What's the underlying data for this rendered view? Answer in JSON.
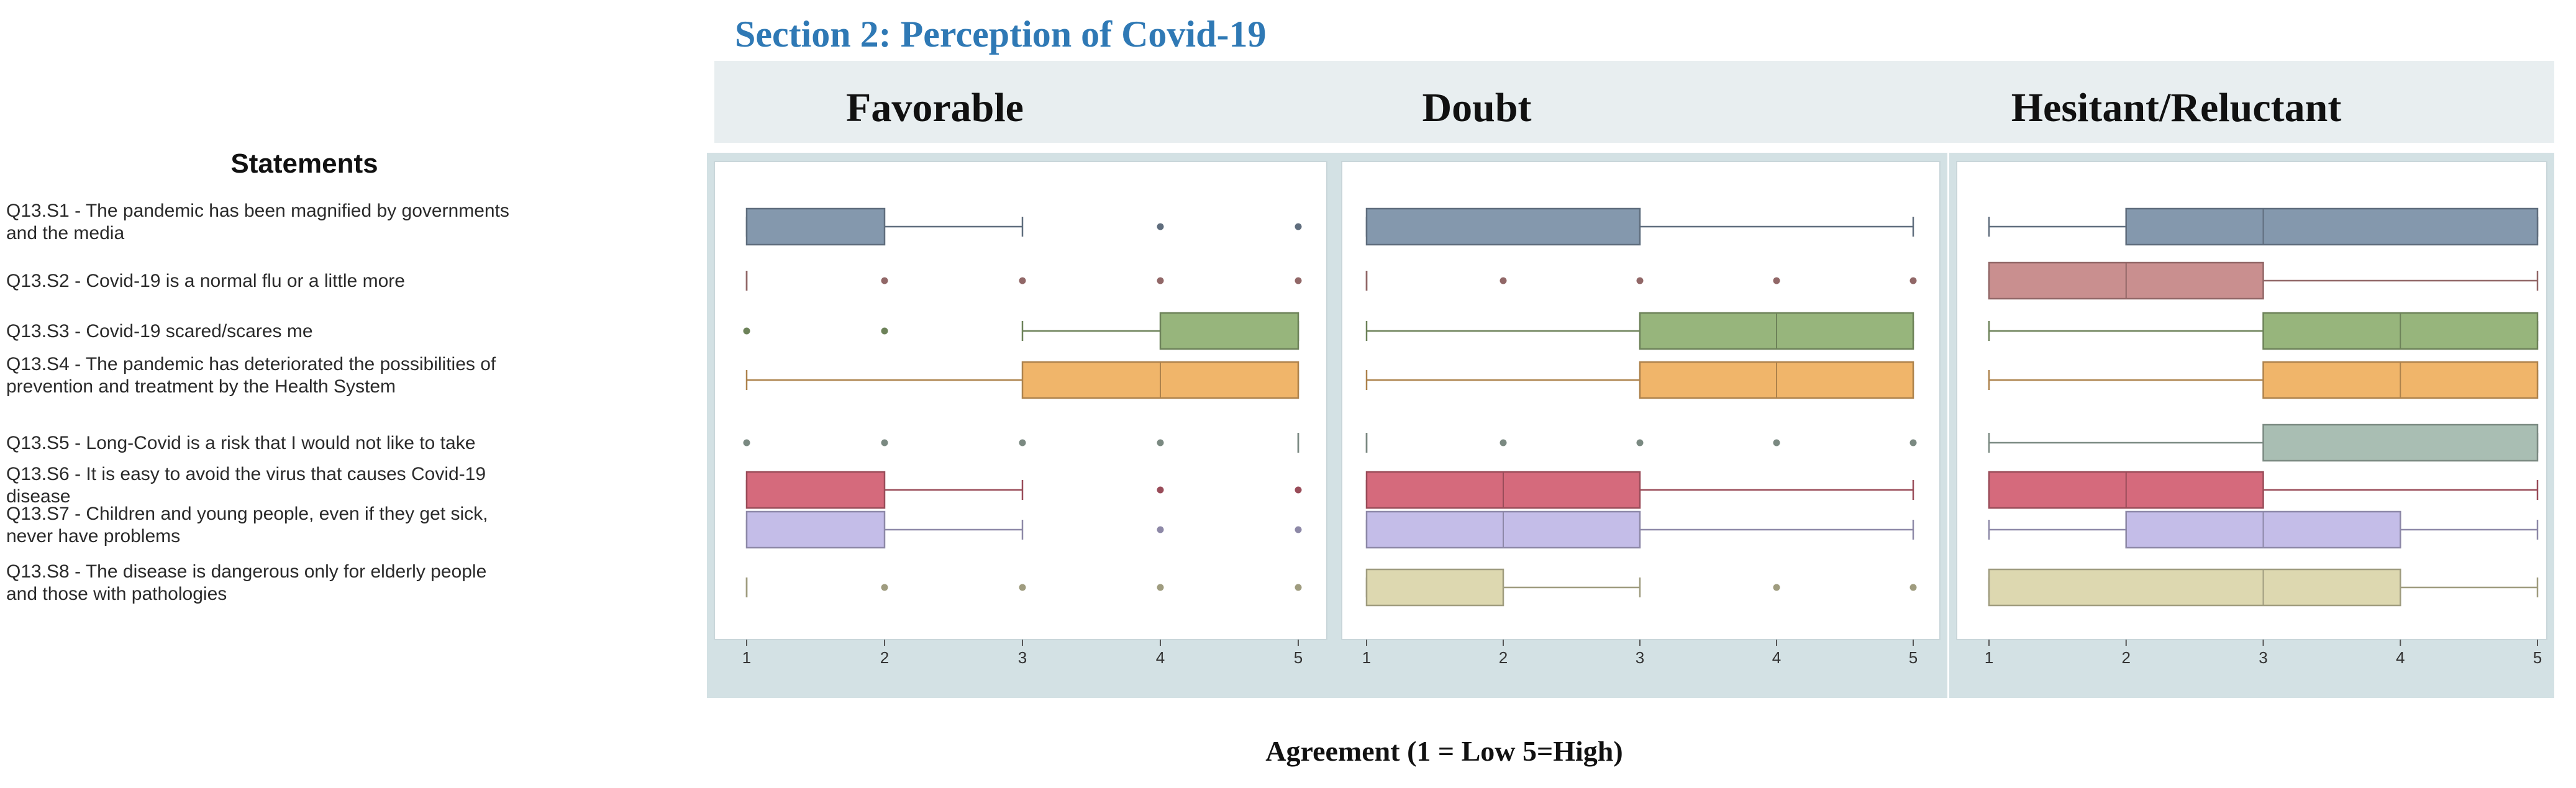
{
  "section_title": "Section 2: Perception of Covid-19",
  "statements_header": "Statements",
  "axis_caption": "Agreement  (1 = Low     5=High)",
  "colors": {
    "section_title": "#2f79b5",
    "panel_band": "#e8eef0",
    "frame": "#d3e1e4",
    "whisker": "#8da0ad"
  },
  "chart_data": {
    "type": "boxplot",
    "xlabel": "Agreement  (1 = Low     5=High)",
    "xlim": [
      1,
      5
    ],
    "ticks": [
      "1",
      "2",
      "3",
      "4",
      "5"
    ],
    "statements": [
      {
        "id": "Q13.S1",
        "lines": [
          "Q13.S1 - The pandemic has been magnified by governments",
          "and the media"
        ],
        "color": "#8498ad"
      },
      {
        "id": "Q13.S2",
        "lines": [
          "Q13.S2 - Covid-19 is a normal flu or a little more"
        ],
        "color": "#c98f8f"
      },
      {
        "id": "Q13.S3",
        "lines": [
          "Q13.S3 - Covid-19 scared/scares me"
        ],
        "color": "#97b57c"
      },
      {
        "id": "Q13.S4",
        "lines": [
          "Q13.S4 - The pandemic has deteriorated the possibilities of",
          "prevention and treatment by the Health System"
        ],
        "color": "#f0b56a"
      },
      {
        "id": "Q13.S5",
        "lines": [
          "Q13.S5 - Long-Covid is a risk that I would not like to take"
        ],
        "color": "#a9beb3"
      },
      {
        "id": "Q13.S6",
        "lines": [
          "Q13.S6 - It is easy to avoid the virus that causes Covid-19",
          "disease"
        ],
        "color": "#d56a7c"
      },
      {
        "id": "Q13.S7",
        "lines": [
          "Q13.S7 - Children and young people, even if they get sick,",
          "never have problems"
        ],
        "color": "#c4bde8"
      },
      {
        "id": "Q13.S8",
        "lines": [
          "Q13.S8 - The disease is dangerous only for elderly people",
          "and those with pathologies"
        ],
        "color": "#ddd8b0"
      }
    ],
    "panels": [
      {
        "name": "Favorable",
        "boxes": [
          {
            "min": 1,
            "q1": 1,
            "median": 2,
            "q3": 2,
            "max": 3,
            "outliers": [
              4,
              5
            ]
          },
          {
            "min": 1,
            "q1": 1,
            "median": 1,
            "q3": 1,
            "max": 1,
            "outliers": [
              2,
              3,
              4,
              5
            ]
          },
          {
            "min": 3,
            "q1": 4,
            "median": 5,
            "q3": 5,
            "max": 5,
            "outliers": [
              1,
              2
            ]
          },
          {
            "min": 1,
            "q1": 3,
            "median": 4,
            "q3": 5,
            "max": 5,
            "outliers": []
          },
          {
            "min": 5,
            "q1": 5,
            "median": 5,
            "q3": 5,
            "max": 5,
            "outliers": [
              1,
              2,
              3,
              4
            ]
          },
          {
            "min": 1,
            "q1": 1,
            "median": 2,
            "q3": 2,
            "max": 3,
            "outliers": [
              4,
              5
            ]
          },
          {
            "min": 1,
            "q1": 1,
            "median": 2,
            "q3": 2,
            "max": 3,
            "outliers": [
              4,
              5
            ]
          },
          {
            "min": 1,
            "q1": 1,
            "median": 1,
            "q3": 1,
            "max": 1,
            "outliers": [
              2,
              3,
              4,
              5
            ]
          }
        ]
      },
      {
        "name": "Doubt",
        "boxes": [
          {
            "min": 1,
            "q1": 1,
            "median": 3,
            "q3": 3,
            "max": 5,
            "outliers": []
          },
          {
            "min": 1,
            "q1": 1,
            "median": 1,
            "q3": 1,
            "max": 1,
            "outliers": [
              2,
              3,
              4,
              5
            ]
          },
          {
            "min": 1,
            "q1": 3,
            "median": 4,
            "q3": 5,
            "max": 5,
            "outliers": []
          },
          {
            "min": 1,
            "q1": 3,
            "median": 4,
            "q3": 5,
            "max": 5,
            "outliers": []
          },
          {
            "min": 1,
            "q1": 1,
            "median": 1,
            "q3": 1,
            "max": 1,
            "outliers": [
              2,
              3,
              4,
              5
            ]
          },
          {
            "min": 1,
            "q1": 1,
            "median": 2,
            "q3": 3,
            "max": 5,
            "outliers": []
          },
          {
            "min": 1,
            "q1": 1,
            "median": 2,
            "q3": 3,
            "max": 5,
            "outliers": []
          },
          {
            "min": 1,
            "q1": 1,
            "median": 1,
            "q3": 2,
            "max": 3,
            "outliers": [
              4,
              5
            ]
          }
        ]
      },
      {
        "name": "Hesitant/Reluctant",
        "boxes": [
          {
            "min": 1,
            "q1": 2,
            "median": 3,
            "q3": 5,
            "max": 5,
            "outliers": []
          },
          {
            "min": 1,
            "q1": 1,
            "median": 2,
            "q3": 3,
            "max": 5,
            "outliers": []
          },
          {
            "min": 1,
            "q1": 3,
            "median": 4,
            "q3": 5,
            "max": 5,
            "outliers": []
          },
          {
            "min": 1,
            "q1": 3,
            "median": 4,
            "q3": 5,
            "max": 5,
            "outliers": []
          },
          {
            "min": 1,
            "q1": 3,
            "median": 5,
            "q3": 5,
            "max": 5,
            "outliers": []
          },
          {
            "min": 1,
            "q1": 1,
            "median": 2,
            "q3": 3,
            "max": 5,
            "outliers": []
          },
          {
            "min": 1,
            "q1": 2,
            "median": 3,
            "q3": 4,
            "max": 5,
            "outliers": []
          },
          {
            "min": 1,
            "q1": 1,
            "median": 3,
            "q3": 4,
            "max": 5,
            "outliers": []
          }
        ]
      }
    ]
  }
}
